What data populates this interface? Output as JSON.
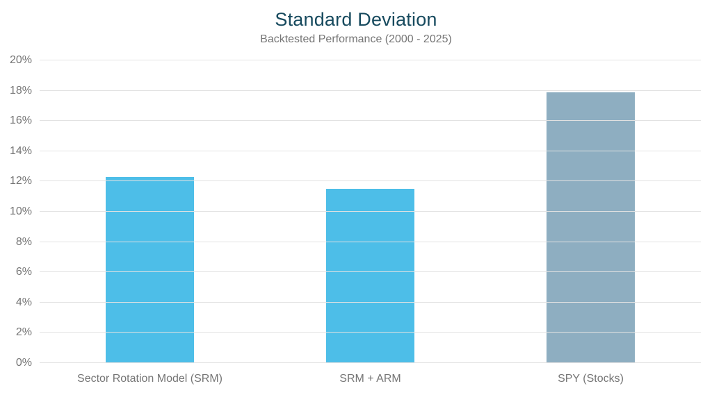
{
  "header": {
    "title": "Standard Deviation",
    "subtitle": "Backtested Performance (2000 - 2025)"
  },
  "chart_data": {
    "type": "bar",
    "title": "Standard Deviation",
    "subtitle": "Backtested Performance (2000 - 2025)",
    "categories": [
      "Sector Rotation Model (SRM)",
      "SRM + ARM",
      "SPY (Stocks)"
    ],
    "values": [
      12.3,
      11.5,
      17.9
    ],
    "unit": "%",
    "xlabel": "",
    "ylabel": "",
    "ylim": [
      0,
      20
    ],
    "ytick_step": 2,
    "ytick_labels": [
      "0%",
      "2%",
      "4%",
      "6%",
      "8%",
      "10%",
      "12%",
      "14%",
      "16%",
      "18%",
      "20%"
    ],
    "grid": "horizontal",
    "legend_position": "none",
    "bar_colors": [
      "#4DBEE8",
      "#4DBEE8",
      "#8EAEC1"
    ],
    "colors": {
      "title": "#174A5E",
      "subtitle": "#757575",
      "axis_text": "#757575",
      "gridline": "#E2E2E2",
      "background": "#FFFFFF"
    }
  }
}
